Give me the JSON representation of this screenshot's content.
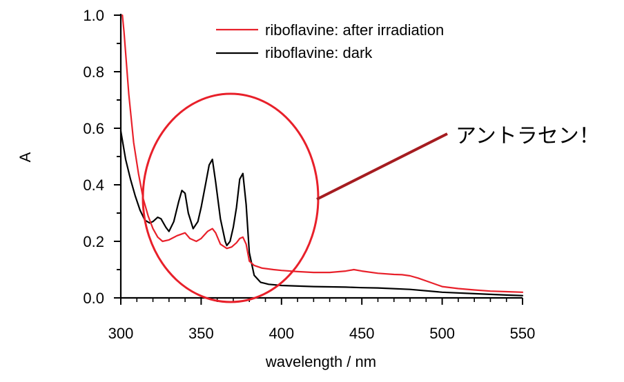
{
  "chart_data": {
    "type": "line",
    "title": "",
    "xlabel": "wavelength / nm",
    "ylabel": "A",
    "xlim": [
      300,
      550
    ],
    "ylim": [
      0,
      1.0
    ],
    "xticks": [
      300,
      350,
      400,
      450,
      500,
      550
    ],
    "yticks": [
      0.0,
      0.2,
      0.4,
      0.6,
      0.8,
      1.0
    ],
    "xtick_labels": [
      "300",
      "350",
      "400",
      "450",
      "500",
      "550"
    ],
    "ytick_labels": [
      "0.0",
      "0.2",
      "0.4",
      "0.6",
      "0.8",
      "1.0"
    ],
    "grid": false,
    "legend_position": "top-center",
    "series": [
      {
        "name": "riboflavine: after irradiation",
        "color": "#e8202a",
        "x": [
          301,
          302,
          305,
          308,
          311,
          314,
          317,
          320,
          323,
          326,
          330,
          335,
          340,
          343,
          347,
          350,
          354,
          357,
          359,
          362,
          366,
          369,
          372,
          374,
          376,
          378,
          380,
          383,
          388,
          395,
          400,
          410,
          420,
          430,
          440,
          445,
          450,
          460,
          470,
          475,
          480,
          485,
          490,
          500,
          510,
          520,
          530,
          540,
          550
        ],
        "y": [
          1.0,
          0.94,
          0.72,
          0.55,
          0.44,
          0.35,
          0.29,
          0.245,
          0.215,
          0.2,
          0.205,
          0.22,
          0.23,
          0.21,
          0.2,
          0.21,
          0.235,
          0.245,
          0.23,
          0.19,
          0.175,
          0.18,
          0.195,
          0.21,
          0.215,
          0.19,
          0.13,
          0.115,
          0.105,
          0.1,
          0.097,
          0.093,
          0.09,
          0.09,
          0.095,
          0.1,
          0.095,
          0.087,
          0.083,
          0.082,
          0.078,
          0.07,
          0.06,
          0.04,
          0.033,
          0.028,
          0.024,
          0.022,
          0.02
        ]
      },
      {
        "name": "riboflavine: dark",
        "color": "#000000",
        "x": [
          300,
          303,
          306,
          309,
          312,
          315,
          318,
          320,
          323,
          325,
          328,
          330,
          333,
          336,
          338,
          340,
          342,
          345,
          348,
          350,
          353,
          355,
          357,
          359,
          362,
          365,
          366,
          368,
          370,
          372,
          374,
          376,
          378,
          380,
          383,
          387,
          392,
          400,
          420,
          440,
          450,
          460,
          480,
          500,
          520,
          540,
          550
        ],
        "y": [
          0.59,
          0.49,
          0.42,
          0.36,
          0.31,
          0.275,
          0.265,
          0.27,
          0.285,
          0.28,
          0.25,
          0.235,
          0.27,
          0.34,
          0.38,
          0.37,
          0.3,
          0.245,
          0.27,
          0.32,
          0.41,
          0.47,
          0.49,
          0.41,
          0.28,
          0.2,
          0.185,
          0.2,
          0.25,
          0.32,
          0.42,
          0.44,
          0.33,
          0.16,
          0.08,
          0.055,
          0.048,
          0.044,
          0.04,
          0.038,
          0.036,
          0.035,
          0.03,
          0.02,
          0.015,
          0.01,
          0.008
        ]
      }
    ],
    "annotation": {
      "text": "アントラセン！",
      "ellipse_color": "#e8202a",
      "arrow_color": "#a51c20"
    }
  }
}
